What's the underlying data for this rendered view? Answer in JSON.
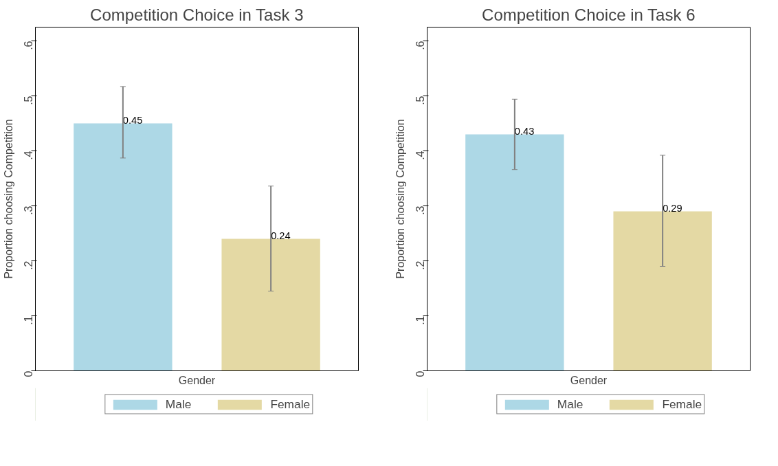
{
  "chart_data": [
    {
      "type": "bar",
      "title": "Competition Choice in Task 3",
      "xlabel": "Gender",
      "ylabel": "Proportion choosing Competition",
      "categories": [
        null
      ],
      "series": [
        {
          "name": "Male",
          "color": "#add8e6",
          "values": [
            0.45
          ],
          "errors": [
            [
              0.387,
              0.517
            ]
          ]
        },
        {
          "name": "Female",
          "color": "#e4d9a4",
          "values": [
            0.24
          ],
          "errors": [
            [
              0.145,
              0.336
            ]
          ]
        }
      ],
      "ylim": [
        0,
        0.625
      ],
      "yticks": [
        0,
        {
          "value": 0.1,
          "label": ".1"
        },
        {
          "value": 0.2,
          "label": ".2"
        },
        {
          "value": 0.3,
          "label": ".3"
        },
        {
          "value": 0.4,
          "label": ".4"
        },
        {
          "value": 0.5,
          "label": ".5"
        },
        {
          "value": 0.6,
          "label": ".6"
        }
      ],
      "data_labels": true,
      "grid": false,
      "legend": "bottom"
    },
    {
      "type": "bar",
      "title": "Competition Choice in Task 6",
      "xlabel": "Gender",
      "ylabel": "Proportion choosing Competition",
      "categories": [
        null
      ],
      "series": [
        {
          "name": "Male",
          "color": "#add8e6",
          "values": [
            0.43
          ],
          "errors": [
            [
              0.366,
              0.494
            ]
          ]
        },
        {
          "name": "Female",
          "color": "#e4d9a4",
          "values": [
            0.29
          ],
          "errors": [
            [
              0.19,
              0.392
            ]
          ]
        }
      ],
      "ylim": [
        0,
        0.625
      ],
      "yticks": [
        0,
        {
          "value": 0.1,
          "label": ".1"
        },
        {
          "value": 0.2,
          "label": ".2"
        },
        {
          "value": 0.3,
          "label": ".3"
        },
        {
          "value": 0.4,
          "label": ".4"
        },
        {
          "value": 0.5,
          "label": ".5"
        },
        {
          "value": 0.6,
          "label": ".6"
        }
      ],
      "data_labels": true,
      "grid": false,
      "legend": "bottom"
    }
  ]
}
